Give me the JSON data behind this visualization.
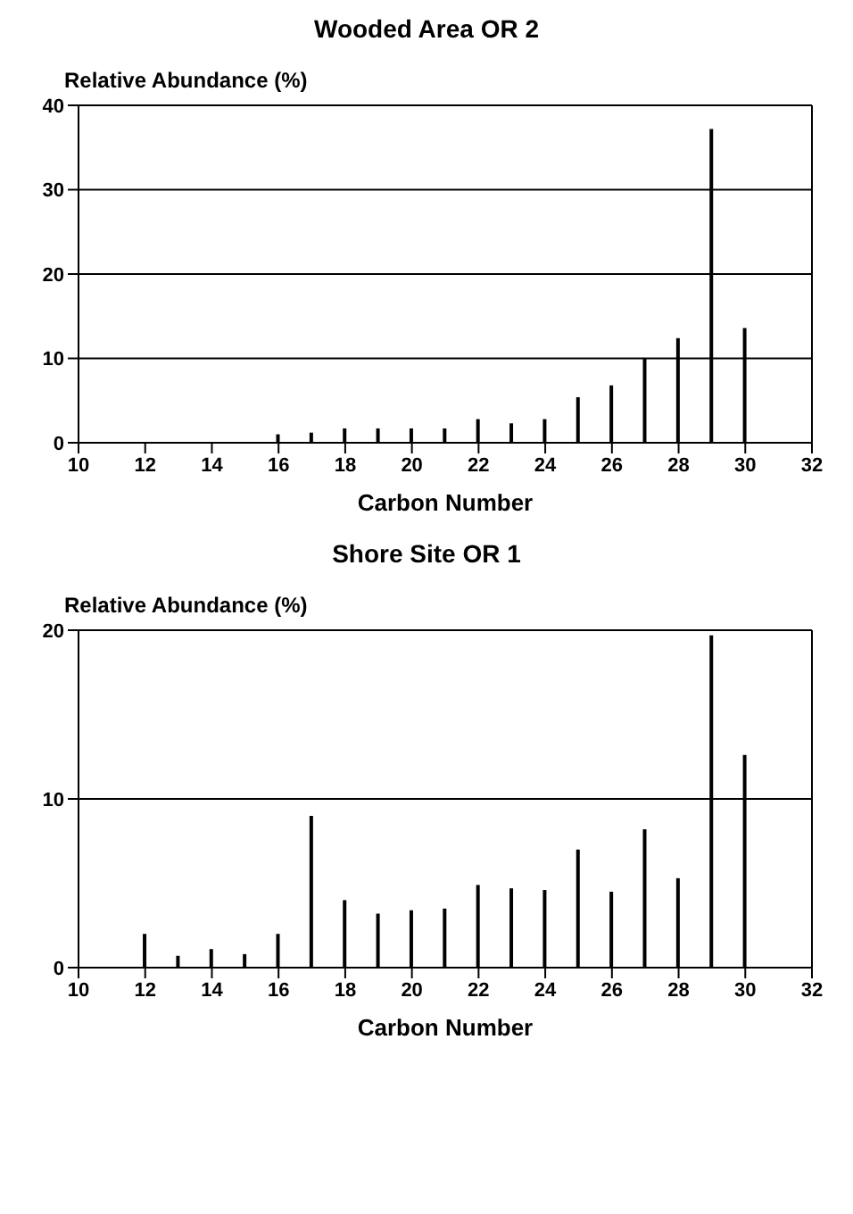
{
  "chart_data": [
    {
      "type": "bar",
      "title": "Wooded Area OR 2",
      "ylabel": "Relative Abundance (%)",
      "xlabel": "Carbon Number",
      "x": [
        16,
        17,
        18,
        19,
        20,
        21,
        22,
        23,
        24,
        25,
        26,
        27,
        28,
        29,
        30
      ],
      "series": [
        {
          "color": "#000000",
          "values": [
            1.0,
            1.2,
            1.7,
            1.7,
            1.7,
            1.7,
            2.8,
            2.3,
            2.8,
            5.4,
            6.8,
            10,
            12.4,
            37.2,
            13.6
          ]
        }
      ],
      "xlim": [
        10,
        32
      ],
      "xticks": [
        10,
        12,
        14,
        16,
        18,
        20,
        22,
        24,
        26,
        28,
        30,
        32
      ],
      "ylim": [
        0,
        40
      ],
      "yticks": [
        0,
        10,
        20,
        30,
        40
      ],
      "grid": "y",
      "legend": false
    },
    {
      "type": "bar",
      "title": "Shore Site OR 1",
      "ylabel": "Relative Abundance (%)",
      "xlabel": "Carbon Number",
      "x": [
        12,
        13,
        14,
        15,
        16,
        17,
        18,
        19,
        20,
        21,
        22,
        23,
        24,
        25,
        26,
        27,
        28,
        29,
        30
      ],
      "series": [
        {
          "color": "#000000",
          "values": [
            2.0,
            0.7,
            1.1,
            0.8,
            2.0,
            9.0,
            4.0,
            3.2,
            3.4,
            3.5,
            4.9,
            4.7,
            4.6,
            7.0,
            4.5,
            8.2,
            5.3,
            19.7,
            12.6
          ]
        }
      ],
      "xlim": [
        10,
        32
      ],
      "xticks": [
        10,
        12,
        14,
        16,
        18,
        20,
        22,
        24,
        26,
        28,
        30,
        32
      ],
      "ylim": [
        0,
        20
      ],
      "yticks": [
        0,
        10,
        20
      ],
      "grid": "y",
      "legend": false
    }
  ]
}
